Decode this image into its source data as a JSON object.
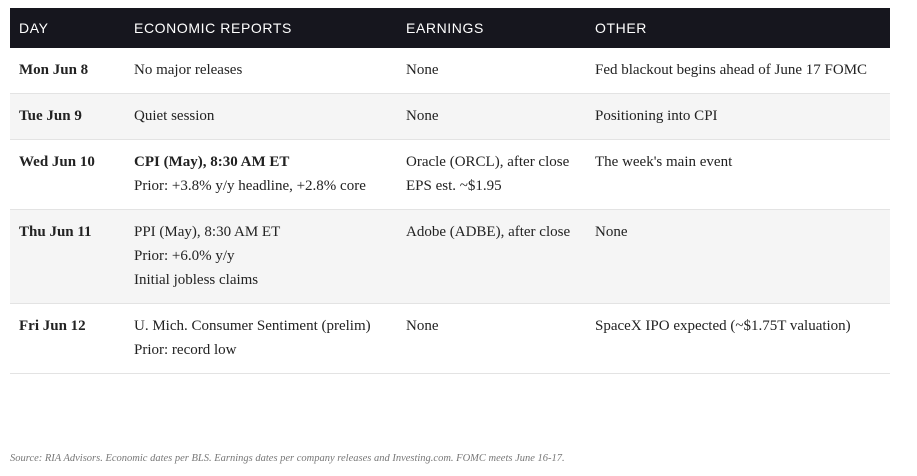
{
  "headers": [
    "DAY",
    "ECONOMIC REPORTS",
    "EARNINGS",
    "OTHER"
  ],
  "rows": [
    {
      "day": "Mon Jun 8",
      "economic": [
        "No major releases"
      ],
      "earnings": [
        "None"
      ],
      "other": [
        "Fed blackout begins ahead of June 17 FOMC"
      ]
    },
    {
      "day": "Tue Jun 9",
      "economic": [
        "Quiet session"
      ],
      "earnings": [
        "None"
      ],
      "other": [
        "Positioning into CPI"
      ]
    },
    {
      "day": "Wed Jun 10",
      "economic": [
        "CPI (May), 8:30 AM ET",
        "Prior: +3.8% y/y headline, +2.8% core"
      ],
      "earnings": [
        "Oracle (ORCL), after close",
        "EPS est. ~$1.95"
      ],
      "other": [
        "The week's main event"
      ]
    },
    {
      "day": "Thu Jun 11",
      "economic": [
        "PPI (May), 8:30 AM ET",
        "Prior: +6.0% y/y",
        "Initial jobless claims"
      ],
      "earnings": [
        "Adobe (ADBE), after close"
      ],
      "other": [
        "None"
      ]
    },
    {
      "day": "Fri Jun 12",
      "economic": [
        "U. Mich. Consumer Sentiment (prelim)",
        "Prior: record low"
      ],
      "earnings": [
        "None"
      ],
      "other": [
        "SpaceX IPO expected (~$1.75T valuation)"
      ]
    }
  ],
  "source": "Source: RIA Advisors. Economic dates per BLS. Earnings dates per company releases and Investing.com. FOMC meets June 16-17."
}
